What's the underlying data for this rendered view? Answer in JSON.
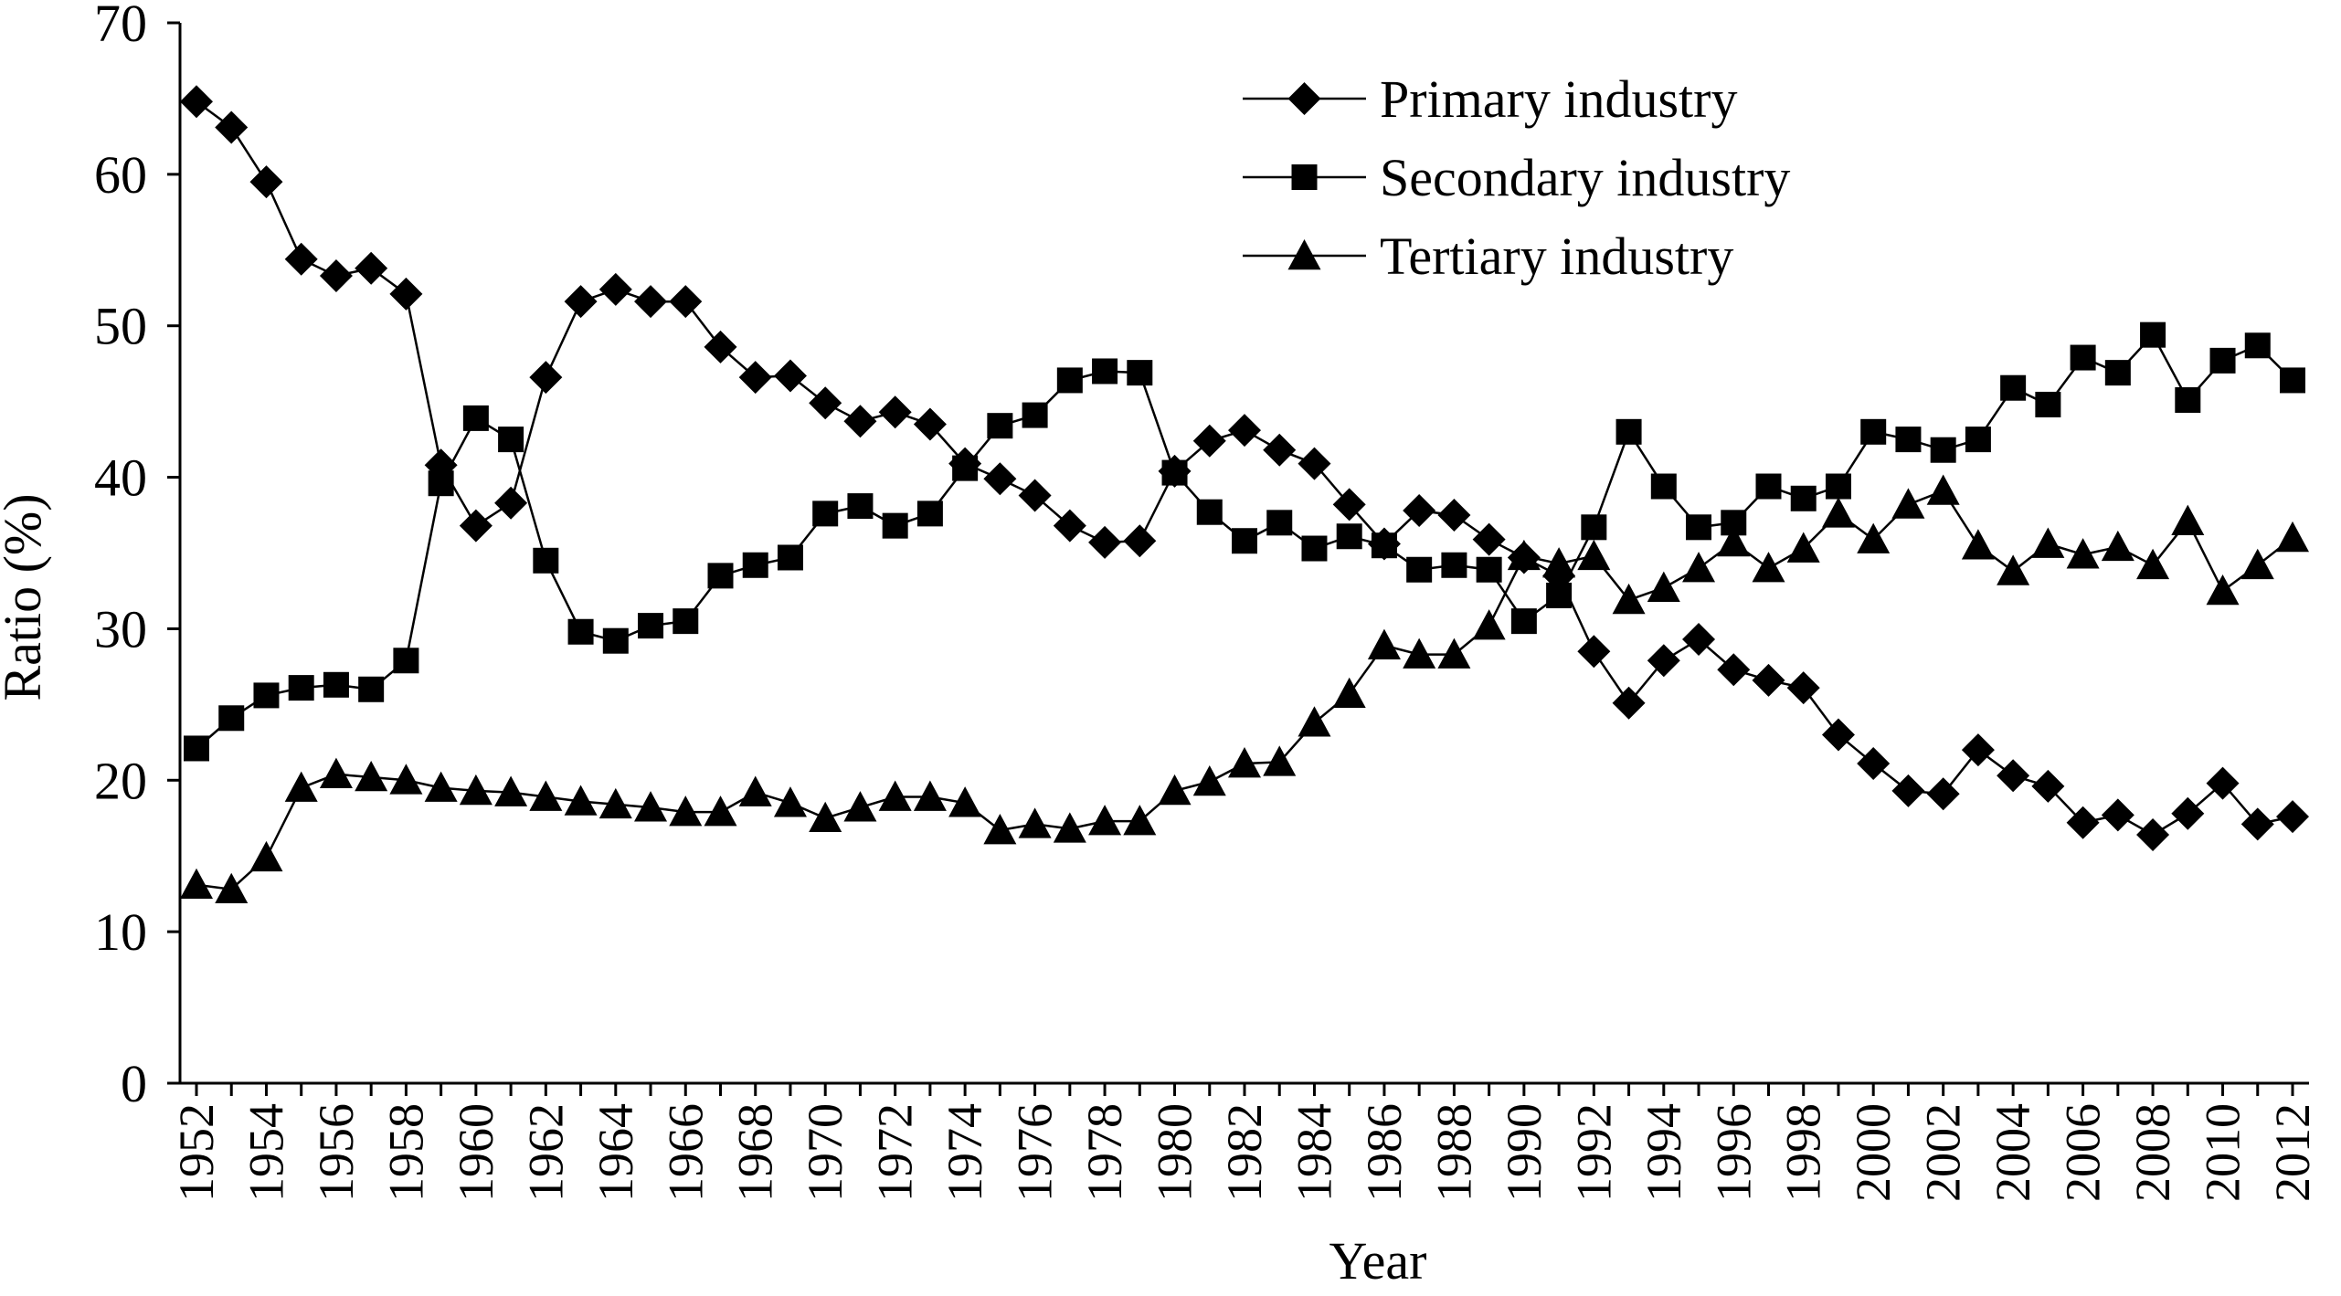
{
  "chart_data": {
    "type": "line",
    "xlabel": "Year",
    "ylabel": "Ratio (%)",
    "ylim": [
      0,
      70
    ],
    "yticks": [
      0,
      10,
      20,
      30,
      40,
      50,
      60,
      70
    ],
    "xticks": [
      1952,
      1954,
      1956,
      1958,
      1960,
      1962,
      1964,
      1966,
      1968,
      1970,
      1972,
      1974,
      1976,
      1978,
      1980,
      1982,
      1984,
      1986,
      1988,
      1990,
      1992,
      1994,
      1996,
      1998,
      2000,
      2002,
      2004,
      2006,
      2008,
      2010,
      2012
    ],
    "x": [
      1952,
      1953,
      1954,
      1955,
      1956,
      1957,
      1958,
      1959,
      1960,
      1961,
      1962,
      1963,
      1964,
      1965,
      1966,
      1967,
      1968,
      1969,
      1970,
      1971,
      1972,
      1973,
      1974,
      1975,
      1976,
      1977,
      1978,
      1979,
      1980,
      1981,
      1982,
      1983,
      1984,
      1985,
      1986,
      1987,
      1988,
      1989,
      1990,
      1991,
      1992,
      1993,
      1994,
      1995,
      1996,
      1997,
      1998,
      1999,
      2000,
      2001,
      2002,
      2003,
      2004,
      2005,
      2006,
      2007,
      2008,
      2009,
      2010,
      2011,
      2012
    ],
    "grid": false,
    "legend_position": "top-right",
    "series": [
      {
        "name": "Primary industry",
        "marker": "diamond",
        "values": [
          64.8,
          63.1,
          59.5,
          54.4,
          53.3,
          53.8,
          52.1,
          40.8,
          36.8,
          38.3,
          46.6,
          51.6,
          52.4,
          51.6,
          51.6,
          48.6,
          46.6,
          46.7,
          44.9,
          43.7,
          44.3,
          43.5,
          40.9,
          39.9,
          38.8,
          36.8,
          35.7,
          35.8,
          40.4,
          42.4,
          43.1,
          41.8,
          40.9,
          38.2,
          35.6,
          37.8,
          37.5,
          35.9,
          34.7,
          33.5,
          28.5,
          25.1,
          27.9,
          29.3,
          27.3,
          26.6,
          26.1,
          23.0,
          21.1,
          19.3,
          19.1,
          22.0,
          20.3,
          19.6,
          17.2,
          17.7,
          16.4,
          17.8,
          19.8,
          17.1,
          17.6
        ]
      },
      {
        "name": "Secondary industry",
        "marker": "square",
        "values": [
          22.1,
          24.1,
          25.6,
          26.1,
          26.3,
          26.0,
          27.9,
          39.6,
          43.9,
          42.5,
          34.5,
          29.8,
          29.2,
          30.2,
          30.5,
          33.5,
          34.2,
          34.7,
          37.6,
          38.1,
          36.8,
          37.6,
          40.6,
          43.4,
          44.1,
          46.4,
          47.0,
          46.9,
          40.3,
          37.7,
          35.8,
          37.0,
          35.3,
          36.1,
          35.5,
          33.9,
          34.2,
          33.9,
          30.5,
          32.2,
          36.7,
          43.0,
          39.4,
          36.7,
          37.0,
          39.4,
          38.6,
          39.4,
          43.0,
          42.5,
          41.8,
          42.5,
          45.9,
          44.8,
          47.9,
          46.9,
          49.4,
          45.1,
          47.7,
          48.7,
          46.4
        ]
      },
      {
        "name": "Tertiary industry",
        "marker": "triangle",
        "values": [
          13.1,
          12.8,
          14.9,
          19.5,
          20.4,
          20.2,
          20.0,
          19.5,
          19.3,
          19.2,
          18.9,
          18.6,
          18.4,
          18.2,
          17.9,
          17.9,
          19.2,
          18.5,
          17.5,
          18.2,
          18.9,
          18.9,
          18.5,
          16.7,
          17.1,
          16.8,
          17.3,
          17.3,
          19.3,
          19.9,
          21.1,
          21.2,
          23.8,
          25.7,
          28.9,
          28.3,
          28.3,
          30.2,
          34.8,
          34.3,
          34.8,
          31.9,
          32.7,
          34.0,
          35.7,
          34.0,
          35.3,
          37.6,
          35.9,
          38.2,
          39.1,
          35.5,
          33.8,
          35.6,
          34.9,
          35.4,
          34.2,
          37.1,
          32.5,
          34.2,
          36.0
        ]
      }
    ]
  }
}
